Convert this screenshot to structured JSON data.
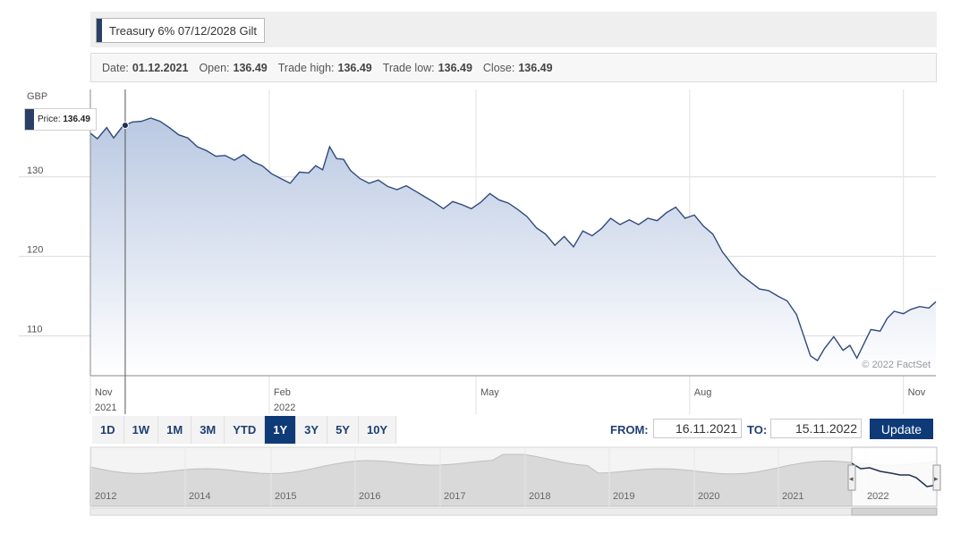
{
  "title": "Treasury 6% 07/12/2028 Gilt",
  "info": {
    "date_label": "Date:",
    "date_value": "01.12.2021",
    "open_label": "Open:",
    "open_value": "136.49",
    "high_label": "Trade high:",
    "high_value": "136.49",
    "low_label": "Trade low:",
    "low_value": "136.49",
    "close_label": "Close:",
    "close_value": "136.49"
  },
  "tooltip": {
    "label": "Price:",
    "value": "136.49"
  },
  "watermark": "© 2022 FactSet",
  "range_buttons": [
    "1D",
    "1W",
    "1M",
    "3M",
    "YTD",
    "1Y",
    "3Y",
    "5Y",
    "10Y"
  ],
  "active_range": "1Y",
  "date_range": {
    "from_label": "FROM:",
    "from_value": "16.11.2021",
    "to_label": "TO:",
    "to_value": "15.11.2022",
    "update_label": "Update"
  },
  "colors": {
    "line": "#2f4a7c",
    "fill_top": "#b9c8e2",
    "button_active": "#0e3a78"
  },
  "chart_data": {
    "type": "area",
    "ylabel": "GBP",
    "yticks": [
      110,
      120,
      130
    ],
    "ylim": [
      105,
      141
    ],
    "xlim": [
      "2021-11-16",
      "2022-11-15"
    ],
    "xticks": [
      {
        "date": "2021-11-01",
        "label": "Nov",
        "sublabel": "2021"
      },
      {
        "date": "2022-02-01",
        "label": "Feb",
        "sublabel": "2022"
      },
      {
        "date": "2022-05-01",
        "label": "May",
        "sublabel": ""
      },
      {
        "date": "2022-08-01",
        "label": "Aug",
        "sublabel": ""
      },
      {
        "date": "2022-11-01",
        "label": "Nov",
        "sublabel": ""
      }
    ],
    "grid": true,
    "marker": {
      "date": "2021-12-01",
      "value": 136.49
    },
    "series": [
      {
        "points": [
          [
            "2021-11-16",
            135.5
          ],
          [
            "2021-11-19",
            134.8
          ],
          [
            "2021-11-23",
            136.2
          ],
          [
            "2021-11-26",
            134.9
          ],
          [
            "2021-11-30",
            136.4
          ],
          [
            "2021-12-01",
            136.49
          ],
          [
            "2021-12-04",
            136.9
          ],
          [
            "2021-12-08",
            137.0
          ],
          [
            "2021-12-12",
            137.4
          ],
          [
            "2021-12-16",
            137.0
          ],
          [
            "2021-12-20",
            136.2
          ],
          [
            "2021-12-24",
            135.3
          ],
          [
            "2021-12-28",
            134.9
          ],
          [
            "2022-01-01",
            133.8
          ],
          [
            "2022-01-05",
            133.3
          ],
          [
            "2022-01-09",
            132.6
          ],
          [
            "2022-01-13",
            132.7
          ],
          [
            "2022-01-17",
            132.1
          ],
          [
            "2022-01-21",
            132.8
          ],
          [
            "2022-01-25",
            131.9
          ],
          [
            "2022-01-29",
            131.4
          ],
          [
            "2022-02-02",
            130.4
          ],
          [
            "2022-02-06",
            129.8
          ],
          [
            "2022-02-10",
            129.2
          ],
          [
            "2022-02-14",
            130.6
          ],
          [
            "2022-02-18",
            130.5
          ],
          [
            "2022-02-21",
            131.4
          ],
          [
            "2022-02-24",
            130.9
          ],
          [
            "2022-02-27",
            133.8
          ],
          [
            "2022-03-02",
            132.3
          ],
          [
            "2022-03-05",
            132.2
          ],
          [
            "2022-03-08",
            130.8
          ],
          [
            "2022-03-12",
            129.8
          ],
          [
            "2022-03-16",
            129.2
          ],
          [
            "2022-03-20",
            129.6
          ],
          [
            "2022-03-24",
            128.8
          ],
          [
            "2022-03-28",
            128.4
          ],
          [
            "2022-04-01",
            128.9
          ],
          [
            "2022-04-05",
            128.2
          ],
          [
            "2022-04-09",
            127.5
          ],
          [
            "2022-04-13",
            126.8
          ],
          [
            "2022-04-17",
            126.0
          ],
          [
            "2022-04-21",
            126.9
          ],
          [
            "2022-04-25",
            126.5
          ],
          [
            "2022-04-29",
            126.0
          ],
          [
            "2022-05-03",
            126.8
          ],
          [
            "2022-05-07",
            127.9
          ],
          [
            "2022-05-11",
            127.1
          ],
          [
            "2022-05-15",
            126.7
          ],
          [
            "2022-05-19",
            125.9
          ],
          [
            "2022-05-23",
            125.0
          ],
          [
            "2022-05-27",
            123.6
          ],
          [
            "2022-05-31",
            122.8
          ],
          [
            "2022-06-04",
            121.4
          ],
          [
            "2022-06-08",
            122.5
          ],
          [
            "2022-06-12",
            121.2
          ],
          [
            "2022-06-16",
            123.2
          ],
          [
            "2022-06-20",
            122.6
          ],
          [
            "2022-06-24",
            123.5
          ],
          [
            "2022-06-28",
            124.8
          ],
          [
            "2022-07-02",
            124.0
          ],
          [
            "2022-07-06",
            124.6
          ],
          [
            "2022-07-10",
            124.0
          ],
          [
            "2022-07-14",
            124.8
          ],
          [
            "2022-07-18",
            124.5
          ],
          [
            "2022-07-22",
            125.5
          ],
          [
            "2022-07-26",
            126.2
          ],
          [
            "2022-07-30",
            124.8
          ],
          [
            "2022-08-03",
            125.2
          ],
          [
            "2022-08-07",
            123.8
          ],
          [
            "2022-08-11",
            122.8
          ],
          [
            "2022-08-15",
            120.6
          ],
          [
            "2022-08-19",
            119.1
          ],
          [
            "2022-08-23",
            117.7
          ],
          [
            "2022-08-27",
            116.8
          ],
          [
            "2022-08-31",
            115.9
          ],
          [
            "2022-09-04",
            115.7
          ],
          [
            "2022-09-08",
            115.0
          ],
          [
            "2022-09-12",
            114.4
          ],
          [
            "2022-09-16",
            112.7
          ],
          [
            "2022-09-19",
            110.1
          ],
          [
            "2022-09-22",
            107.5
          ],
          [
            "2022-09-25",
            106.9
          ],
          [
            "2022-09-28",
            108.4
          ],
          [
            "2022-10-02",
            109.9
          ],
          [
            "2022-10-06",
            108.2
          ],
          [
            "2022-10-09",
            108.8
          ],
          [
            "2022-10-12",
            107.2
          ],
          [
            "2022-10-15",
            109.0
          ],
          [
            "2022-10-18",
            110.8
          ],
          [
            "2022-10-22",
            110.6
          ],
          [
            "2022-10-25",
            112.2
          ],
          [
            "2022-10-28",
            113.1
          ],
          [
            "2022-11-01",
            112.8
          ],
          [
            "2022-11-04",
            113.3
          ],
          [
            "2022-11-08",
            113.7
          ],
          [
            "2022-11-12",
            113.5
          ],
          [
            "2022-11-15",
            114.3
          ]
        ]
      }
    ]
  },
  "navigator": {
    "years": [
      "2012",
      "2014",
      "2015",
      "2016",
      "2017",
      "2018",
      "2019",
      "2020",
      "2021",
      "2022"
    ]
  }
}
